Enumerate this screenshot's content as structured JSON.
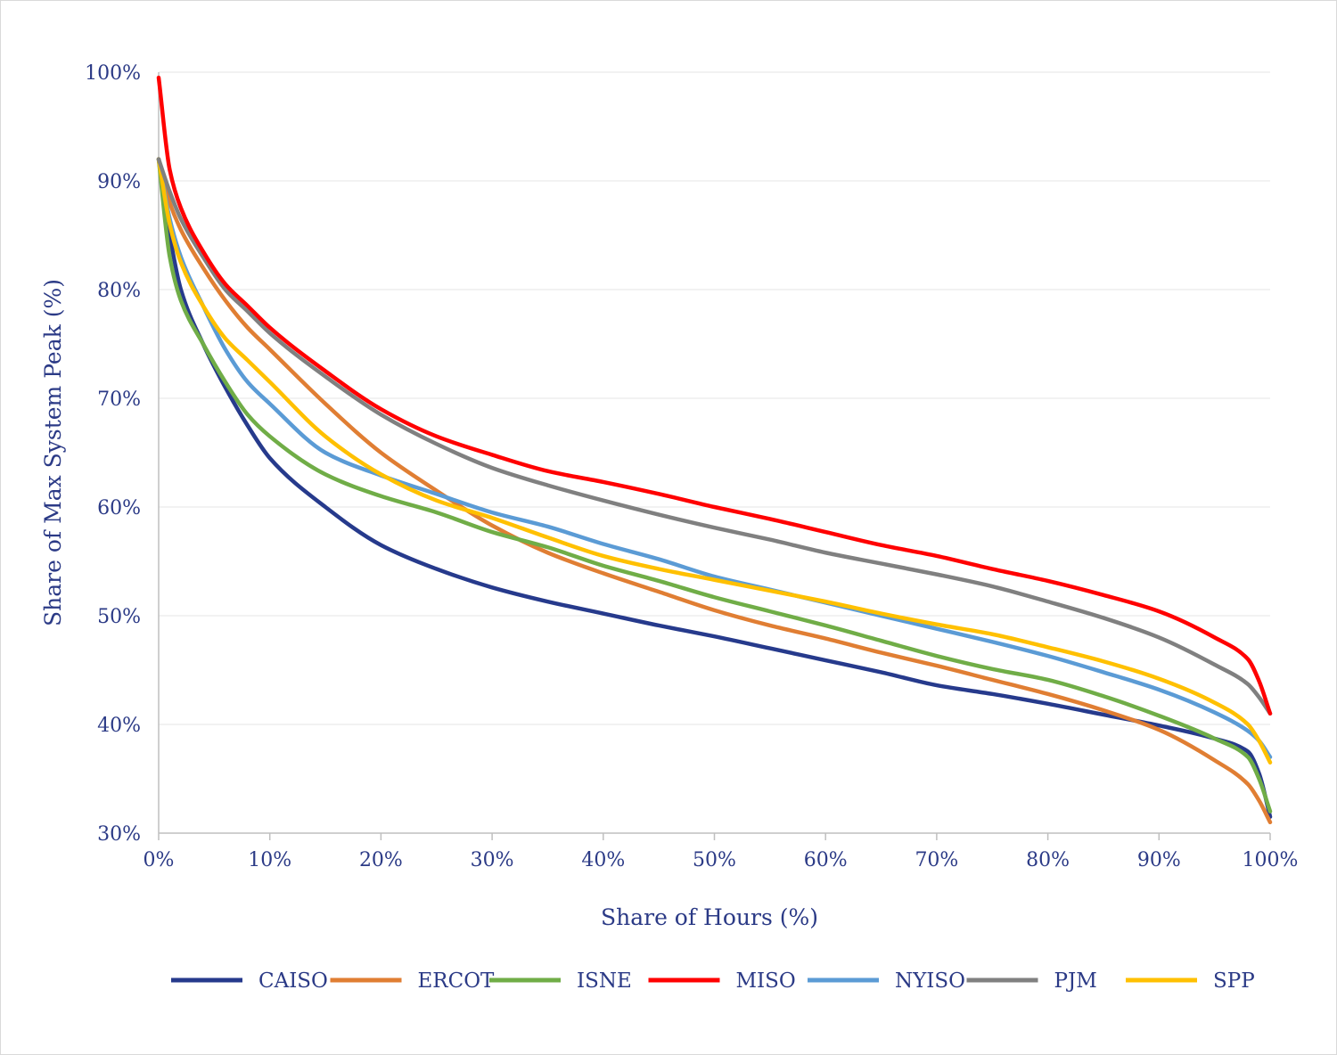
{
  "chart_data": {
    "type": "line",
    "title": "",
    "xlabel": "Share of Hours (%)",
    "ylabel": "Share of Max System Peak (%)",
    "xlim": [
      0,
      100
    ],
    "ylim": [
      30,
      100
    ],
    "x_ticks": [
      0,
      10,
      20,
      30,
      40,
      50,
      60,
      70,
      80,
      90,
      100
    ],
    "x_tick_labels": [
      "0%",
      "10%",
      "20%",
      "30%",
      "40%",
      "50%",
      "60%",
      "70%",
      "80%",
      "90%",
      "100%"
    ],
    "y_ticks": [
      30,
      40,
      50,
      60,
      70,
      80,
      90,
      100
    ],
    "y_tick_labels": [
      "30%",
      "40%",
      "50%",
      "60%",
      "70%",
      "80%",
      "90%",
      "100%"
    ],
    "grid": true,
    "legend_position": "bottom",
    "x": [
      0,
      1,
      2,
      4,
      6,
      8,
      10,
      15,
      20,
      25,
      30,
      35,
      40,
      45,
      50,
      55,
      60,
      65,
      70,
      75,
      80,
      85,
      90,
      95,
      98,
      99,
      100
    ],
    "series": [
      {
        "name": "CAISO",
        "color": "#263a8c",
        "values": [
          92,
          85,
          80,
          75,
          71,
          67.5,
          64.5,
          60,
          56.5,
          54.3,
          52.6,
          51.3,
          50.2,
          49.1,
          48.1,
          47,
          45.9,
          44.8,
          43.6,
          42.8,
          41.9,
          40.9,
          39.9,
          38.7,
          37.5,
          35.5,
          31.5
        ]
      },
      {
        "name": "ERCOT",
        "color": "#e07e33",
        "values": [
          92,
          88,
          85.5,
          82,
          79,
          76.5,
          74.5,
          69.5,
          65,
          61.5,
          58.3,
          55.8,
          53.9,
          52.2,
          50.5,
          49.1,
          47.9,
          46.6,
          45.4,
          44.1,
          42.8,
          41.3,
          39.5,
          36.7,
          34.5,
          33,
          31
        ]
      },
      {
        "name": "ISNE",
        "color": "#70ad47",
        "values": [
          92,
          83,
          79,
          75,
          71.5,
          68.5,
          66.5,
          63,
          61,
          59.5,
          57.7,
          56.3,
          54.6,
          53.2,
          51.7,
          50.4,
          49.1,
          47.7,
          46.3,
          45.1,
          44.1,
          42.6,
          40.8,
          38.7,
          37,
          35,
          32
        ]
      },
      {
        "name": "MISO",
        "color": "#ff0000",
        "values": [
          99.5,
          91,
          87.5,
          83.5,
          80.5,
          78.5,
          76.5,
          72.5,
          69,
          66.5,
          64.8,
          63.3,
          62.3,
          61.2,
          60,
          58.9,
          57.7,
          56.5,
          55.5,
          54.3,
          53.2,
          51.9,
          50.4,
          48,
          46,
          44,
          41
        ]
      },
      {
        "name": "NYISO",
        "color": "#5b9bd5",
        "values": [
          92,
          86.5,
          83,
          78.5,
          74.5,
          71.5,
          69.5,
          65,
          62.9,
          61.2,
          59.5,
          58.2,
          56.6,
          55.2,
          53.6,
          52.4,
          51.2,
          50,
          48.8,
          47.6,
          46.3,
          44.8,
          43.2,
          41.1,
          39.4,
          38.5,
          37
        ]
      },
      {
        "name": "PJM",
        "color": "#808080",
        "values": [
          92,
          89,
          86.5,
          83,
          80,
          78,
          76,
          72,
          68.5,
          65.8,
          63.6,
          62,
          60.6,
          59.3,
          58.1,
          57,
          55.8,
          54.8,
          53.8,
          52.7,
          51.3,
          49.8,
          48,
          45.5,
          43.7,
          42.5,
          41
        ]
      },
      {
        "name": "SPP",
        "color": "#ffc000",
        "values": [
          92,
          86,
          82.5,
          78.5,
          75.5,
          73.5,
          71.5,
          66.5,
          63,
          60.6,
          59,
          57.2,
          55.5,
          54.3,
          53.3,
          52.3,
          51.3,
          50.2,
          49.2,
          48.3,
          47.1,
          45.8,
          44.2,
          42,
          40,
          38.5,
          36.5
        ]
      }
    ]
  }
}
